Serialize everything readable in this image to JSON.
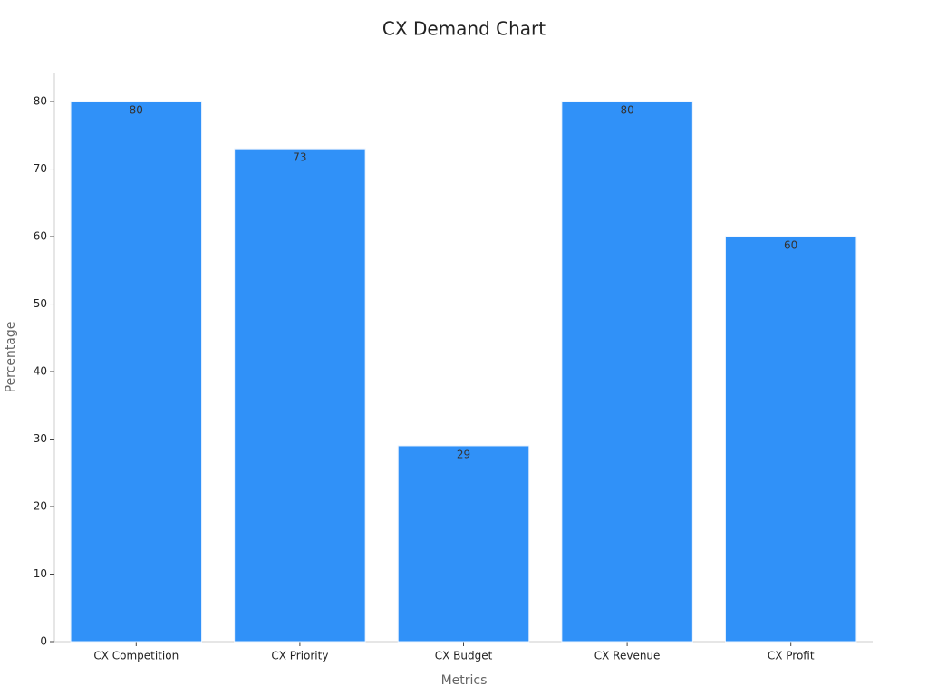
{
  "chart_data": {
    "type": "bar",
    "title": "CX Demand Chart",
    "x_label": "Metrics",
    "y_label": "Percentage",
    "categories": [
      "CX Competition",
      "CX Priority",
      "CX Budget",
      "CX Revenue",
      "CX Profit"
    ],
    "values": [
      80,
      73,
      29,
      80,
      60
    ],
    "color": "#3091f8",
    "ylim": [
      0,
      84.3
    ],
    "yticks": [
      0,
      10,
      20,
      30,
      40,
      50,
      60,
      70,
      80
    ],
    "grid": false
  }
}
